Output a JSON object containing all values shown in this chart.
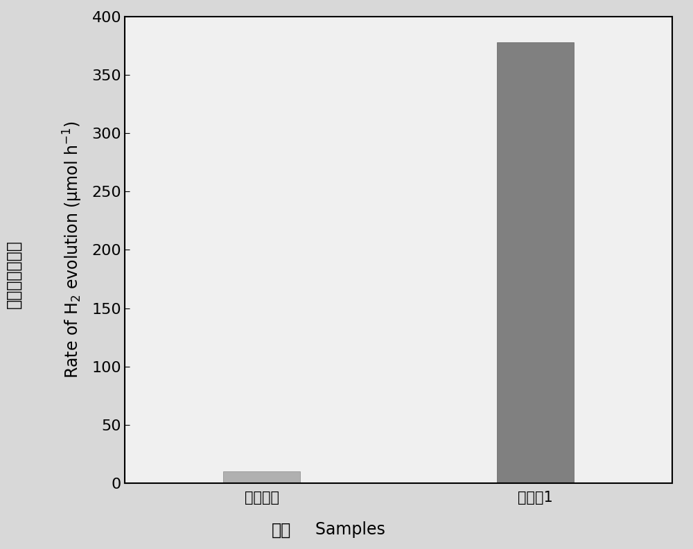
{
  "categories": [
    "市售粉末",
    "实施例1"
  ],
  "values": [
    10,
    378
  ],
  "bar_color_1": "#b0b0b0",
  "bar_color_2": "#808080",
  "bar_width": 0.28,
  "ylim": [
    0,
    400
  ],
  "yticks": [
    0,
    50,
    100,
    150,
    200,
    250,
    300,
    350,
    400
  ],
  "ylabel_english": "Rate of H$_2$ evolution (μmol h$^{-1}$)",
  "ylabel_chinese": "氢气的产生速度",
  "xlabel_english": "Samples",
  "xlabel_chinese": "样品",
  "outer_bg_color": "#d8d8d8",
  "plot_bg_color": "#f0f0f0",
  "tick_fontsize": 16,
  "label_fontsize": 17,
  "chinese_fontsize": 17,
  "xtick_fontsize": 15
}
